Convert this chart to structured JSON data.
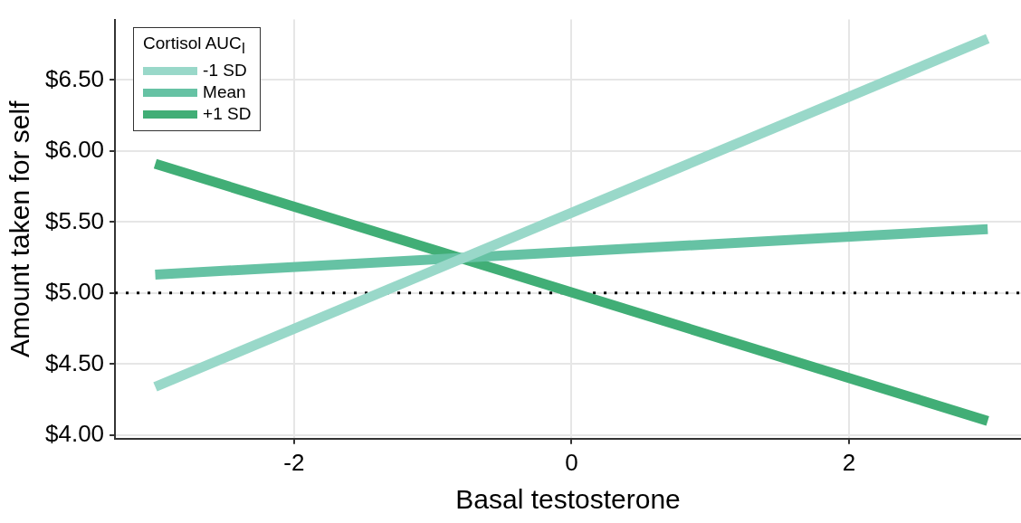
{
  "chart_data": {
    "type": "line",
    "xlabel": "Basal testosterone",
    "ylabel": "Amount taken for self",
    "legend_title": "Cortisol AUC$_{I}$",
    "xlim": [
      -3.29,
      3.24
    ],
    "xticks": [
      -2,
      0,
      2
    ],
    "ylim": [
      3.975,
      6.925
    ],
    "yticks": [
      {
        "value": 4,
        "label": "$4.00"
      },
      {
        "value": 4.5,
        "label": "$4.50"
      },
      {
        "value": 5,
        "label": "$5.00"
      },
      {
        "value": 5.5,
        "label": "$5.50"
      },
      {
        "value": 6,
        "label": "$6.00"
      },
      {
        "value": 6.5,
        "label": "$6.50"
      }
    ],
    "x": [
      -3,
      3
    ],
    "series": [
      {
        "name": "-1 SD",
        "color": "#99d8c9",
        "values": [
          4.34,
          6.79
        ]
      },
      {
        "name": "Mean",
        "color": "#66c2a4",
        "values": [
          5.13,
          5.45
        ]
      },
      {
        "name": "+1 SD",
        "color": "#41ae76",
        "values": [
          5.91,
          4.1
        ]
      }
    ],
    "ref_lines": [
      {
        "axis": "y",
        "value": 5,
        "line_style": "dotted",
        "color": "#000000"
      }
    ],
    "grid": true,
    "legend": "top left",
    "marker": "none",
    "line_style": "solid"
  }
}
